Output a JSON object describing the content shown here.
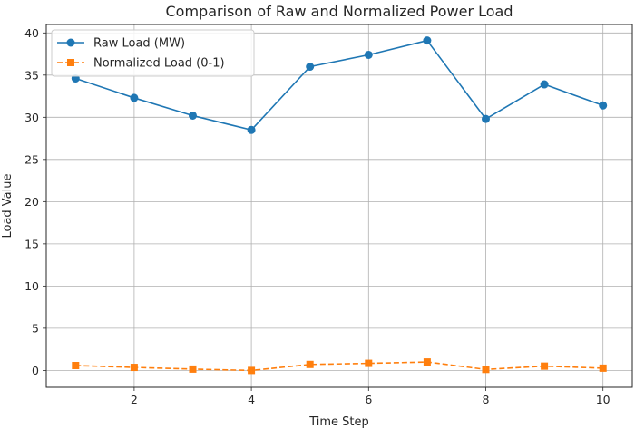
{
  "chart_data": {
    "type": "line",
    "title": "Comparison of Raw and Normalized Power Load",
    "xlabel": "Time Step",
    "ylabel": "Load Value",
    "x": [
      1,
      2,
      3,
      4,
      5,
      6,
      7,
      8,
      9,
      10
    ],
    "xlim": [
      0.5,
      10.5
    ],
    "ylim": [
      -2,
      41
    ],
    "xticks": [
      2,
      4,
      6,
      8,
      10
    ],
    "yticks": [
      0,
      5,
      10,
      15,
      20,
      25,
      30,
      35,
      40
    ],
    "grid": true,
    "legend_position": "top-left",
    "series": [
      {
        "name": "Raw Load (MW)",
        "color": "#1f77b4",
        "line_style": "solid",
        "marker": "circle",
        "values": [
          34.6,
          32.3,
          30.2,
          28.5,
          36.0,
          37.4,
          39.1,
          29.8,
          33.9,
          31.4
        ]
      },
      {
        "name": "Normalized Load (0-1)",
        "color": "#ff7f0e",
        "line_style": "dashed",
        "marker": "square",
        "values": [
          0.58,
          0.36,
          0.16,
          0.0,
          0.71,
          0.84,
          1.0,
          0.12,
          0.51,
          0.27
        ]
      }
    ]
  }
}
